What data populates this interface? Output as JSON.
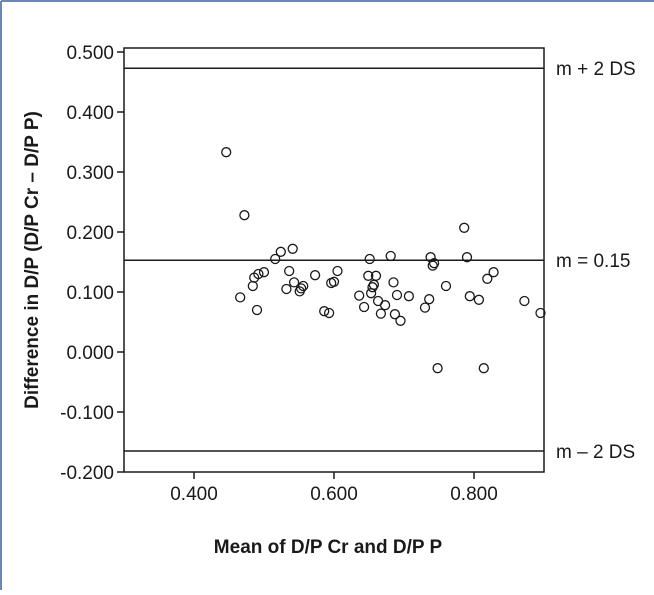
{
  "colors": {
    "frame_border": "#6b86b8",
    "ink": "#1a1a1a",
    "background": "#ffffff"
  },
  "chart_data": {
    "type": "scatter",
    "title": "",
    "xlabel": "Mean of D/P Cr and D/P P",
    "ylabel": "Difference in D/P (D/P Cr – D/P P)",
    "xlim": [
      0.3,
      0.9
    ],
    "ylim": [
      -0.2,
      0.5
    ],
    "x_ticks": [
      0.4,
      0.6,
      0.8
    ],
    "x_tick_labels": [
      "0.400",
      "0.600",
      "0.800"
    ],
    "y_ticks": [
      0.5,
      0.4,
      0.3,
      0.2,
      0.1,
      0.0,
      -0.1,
      -0.2
    ],
    "y_tick_labels": [
      "0.500",
      "0.400",
      "0.300",
      "0.200",
      "0.100",
      "0.000",
      "-0.100",
      "-0.200"
    ],
    "grid": false,
    "marker": "open-circle",
    "reference_lines": [
      {
        "label": "m + 2 DS",
        "y": 0.473
      },
      {
        "label": "m = 0.15",
        "y": 0.153
      },
      {
        "label": "m – 2 DS",
        "y": -0.165
      }
    ],
    "points": [
      [
        0.446,
        0.333
      ],
      [
        0.472,
        0.228
      ],
      [
        0.466,
        0.091
      ],
      [
        0.484,
        0.11
      ],
      [
        0.486,
        0.124
      ],
      [
        0.49,
        0.07
      ],
      [
        0.492,
        0.13
      ],
      [
        0.5,
        0.133
      ],
      [
        0.516,
        0.155
      ],
      [
        0.524,
        0.167
      ],
      [
        0.532,
        0.105
      ],
      [
        0.536,
        0.135
      ],
      [
        0.541,
        0.172
      ],
      [
        0.543,
        0.116
      ],
      [
        0.551,
        0.101
      ],
      [
        0.553,
        0.106
      ],
      [
        0.556,
        0.11
      ],
      [
        0.573,
        0.128
      ],
      [
        0.586,
        0.068
      ],
      [
        0.593,
        0.065
      ],
      [
        0.596,
        0.115
      ],
      [
        0.6,
        0.117
      ],
      [
        0.605,
        0.135
      ],
      [
        0.636,
        0.094
      ],
      [
        0.643,
        0.075
      ],
      [
        0.649,
        0.127
      ],
      [
        0.651,
        0.155
      ],
      [
        0.653,
        0.098
      ],
      [
        0.655,
        0.108
      ],
      [
        0.657,
        0.112
      ],
      [
        0.66,
        0.127
      ],
      [
        0.663,
        0.085
      ],
      [
        0.667,
        0.064
      ],
      [
        0.673,
        0.078
      ],
      [
        0.681,
        0.16
      ],
      [
        0.685,
        0.116
      ],
      [
        0.687,
        0.063
      ],
      [
        0.69,
        0.095
      ],
      [
        0.695,
        0.052
      ],
      [
        0.707,
        0.093
      ],
      [
        0.73,
        0.074
      ],
      [
        0.736,
        0.088
      ],
      [
        0.738,
        0.158
      ],
      [
        0.741,
        0.144
      ],
      [
        0.743,
        0.148
      ],
      [
        0.748,
        -0.027
      ],
      [
        0.76,
        0.11
      ],
      [
        0.786,
        0.207
      ],
      [
        0.79,
        0.158
      ],
      [
        0.794,
        0.093
      ],
      [
        0.807,
        0.087
      ],
      [
        0.814,
        -0.027
      ],
      [
        0.819,
        0.122
      ],
      [
        0.828,
        0.133
      ],
      [
        0.872,
        0.085
      ],
      [
        0.895,
        0.065
      ]
    ]
  }
}
